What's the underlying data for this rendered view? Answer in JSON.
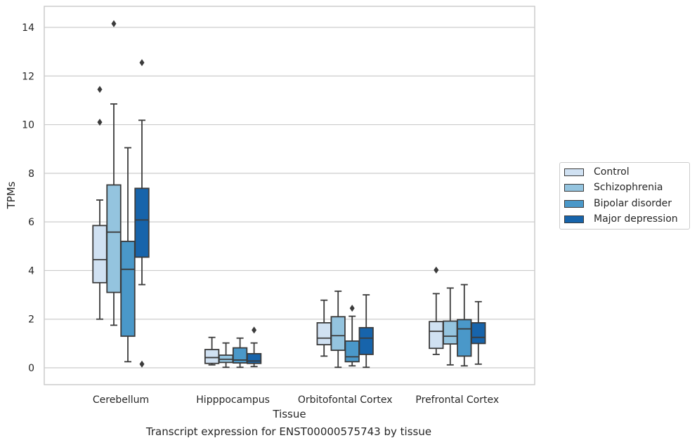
{
  "chart_data": {
    "type": "box",
    "title": "Transcript expression for ENST00000575743 by tissue",
    "xlabel": "Tissue",
    "ylabel": "TPMs",
    "ylim": [
      -0.7,
      14.8
    ],
    "yticks": [
      0,
      2,
      4,
      6,
      8,
      10,
      12,
      14
    ],
    "categories": [
      "Cerebellum",
      "Hipppocampus",
      "Orbitofontal Cortex",
      "Prefrontal Cortex"
    ],
    "grid": true,
    "legend_position": "right",
    "series": [
      {
        "name": "Control",
        "color": "#d0e1f2",
        "boxes": [
          {
            "whisker_low": 2.0,
            "q1": 3.5,
            "median": 4.45,
            "q3": 5.85,
            "whisker_high": 6.9,
            "outliers": [
              10.1,
              11.45
            ]
          },
          {
            "whisker_low": 0.12,
            "q1": 0.18,
            "median": 0.42,
            "q3": 0.75,
            "whisker_high": 1.25,
            "outliers": []
          },
          {
            "whisker_low": 0.48,
            "q1": 0.95,
            "median": 1.22,
            "q3": 1.85,
            "whisker_high": 2.78,
            "outliers": []
          },
          {
            "whisker_low": 0.55,
            "q1": 0.8,
            "median": 1.5,
            "q3": 1.9,
            "whisker_high": 3.05,
            "outliers": [
              4.02
            ]
          }
        ]
      },
      {
        "name": "Schizophrenia",
        "color": "#94c4df",
        "boxes": [
          {
            "whisker_low": 1.75,
            "q1": 3.1,
            "median": 5.58,
            "q3": 7.52,
            "whisker_high": 10.85,
            "outliers": [
              14.15
            ]
          },
          {
            "whisker_low": 0.02,
            "q1": 0.22,
            "median": 0.35,
            "q3": 0.52,
            "whisker_high": 1.02,
            "outliers": []
          },
          {
            "whisker_low": 0.02,
            "q1": 0.72,
            "median": 1.32,
            "q3": 2.1,
            "whisker_high": 3.15,
            "outliers": []
          },
          {
            "whisker_low": 0.12,
            "q1": 0.98,
            "median": 1.3,
            "q3": 1.92,
            "whisker_high": 3.28,
            "outliers": []
          }
        ]
      },
      {
        "name": "Bipolar disorder",
        "color": "#4a98c9",
        "boxes": [
          {
            "whisker_low": 0.25,
            "q1": 1.3,
            "median": 4.05,
            "q3": 5.2,
            "whisker_high": 9.05,
            "outliers": []
          },
          {
            "whisker_low": 0.02,
            "q1": 0.2,
            "median": 0.32,
            "q3": 0.82,
            "whisker_high": 1.22,
            "outliers": []
          },
          {
            "whisker_low": 0.08,
            "q1": 0.25,
            "median": 0.45,
            "q3": 1.1,
            "whisker_high": 2.12,
            "outliers": [
              2.45
            ]
          },
          {
            "whisker_low": 0.08,
            "q1": 0.48,
            "median": 1.6,
            "q3": 1.98,
            "whisker_high": 3.42,
            "outliers": []
          }
        ]
      },
      {
        "name": "Major depression",
        "color": "#1764ab",
        "boxes": [
          {
            "whisker_low": 3.42,
            "q1": 4.55,
            "median": 6.08,
            "q3": 7.38,
            "whisker_high": 10.18,
            "outliers": [
              0.15,
              12.55
            ]
          },
          {
            "whisker_low": 0.05,
            "q1": 0.18,
            "median": 0.28,
            "q3": 0.58,
            "whisker_high": 1.02,
            "outliers": [
              1.55
            ]
          },
          {
            "whisker_low": 0.02,
            "q1": 0.55,
            "median": 1.22,
            "q3": 1.65,
            "whisker_high": 3.0,
            "outliers": []
          },
          {
            "whisker_low": 0.15,
            "q1": 1.0,
            "median": 1.25,
            "q3": 1.85,
            "whisker_high": 2.72,
            "outliers": []
          }
        ]
      }
    ]
  }
}
